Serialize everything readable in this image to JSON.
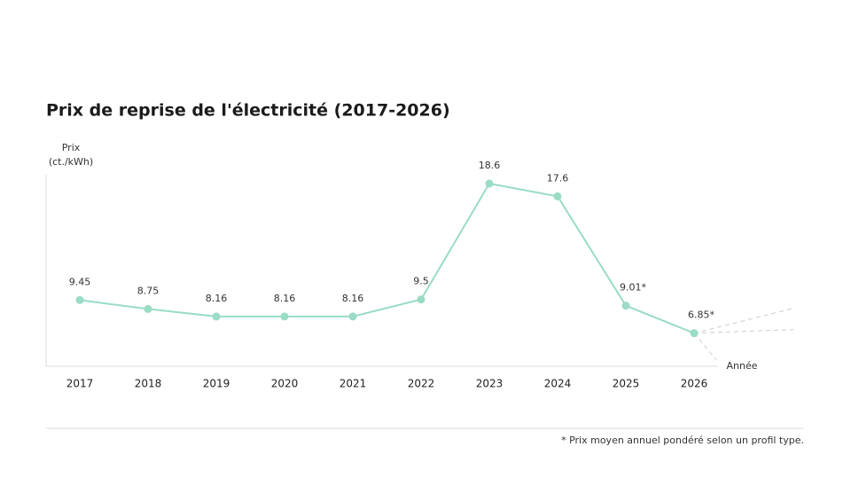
{
  "chart_data": {
    "type": "line",
    "title": "Prix de reprise de l'électricité (2017-2026)",
    "ylabel": [
      "Prix",
      "(ct./kWh)"
    ],
    "xlabel": "Année",
    "categories": [
      "2017",
      "2018",
      "2019",
      "2020",
      "2021",
      "2022",
      "2023",
      "2024",
      "2025",
      "2026"
    ],
    "values": [
      9.45,
      8.75,
      8.16,
      8.16,
      8.16,
      9.5,
      18.6,
      17.6,
      9.01,
      6.85
    ],
    "value_labels": [
      "9.45",
      "8.75",
      "8.16",
      "8.16",
      "8.16",
      "9.5",
      "18.6",
      "17.6",
      "9.01*",
      "6.85*"
    ],
    "color": "#9adcc4",
    "ylim": [
      4.25,
      19.3
    ],
    "footnote": "* Prix moyen annuel pondéré selon un profil type."
  }
}
